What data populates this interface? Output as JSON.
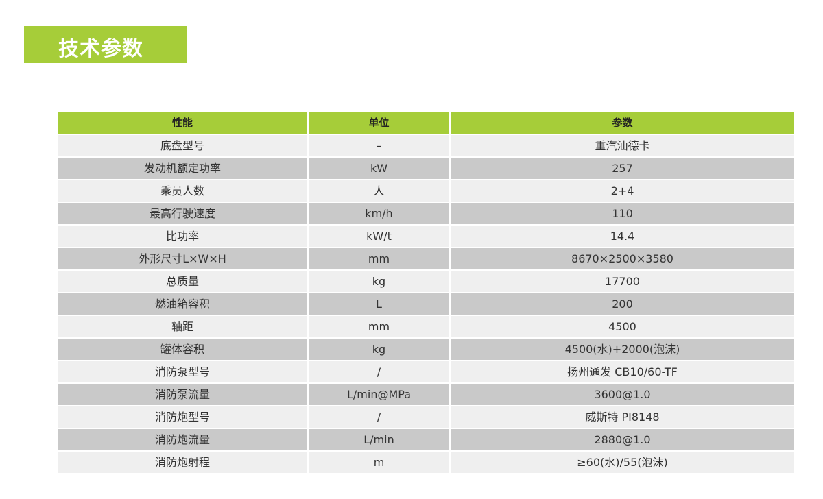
{
  "title": "技术参数",
  "colors": {
    "accent": "#a6cd39",
    "row_light": "#efefef",
    "row_dark": "#c9c9c9"
  },
  "table": {
    "headers": [
      "性能",
      "单位",
      "参数"
    ],
    "rows": [
      [
        "底盘型号",
        "–",
        "重汽汕德卡"
      ],
      [
        "发动机额定功率",
        "kW",
        "257"
      ],
      [
        "乘员人数",
        "人",
        "2+4"
      ],
      [
        "最高行驶速度",
        "km/h",
        "110"
      ],
      [
        "比功率",
        "kW/t",
        "14.4"
      ],
      [
        "外形尺寸L×W×H",
        "mm",
        "8670×2500×3580"
      ],
      [
        "总质量",
        "kg",
        "17700"
      ],
      [
        "燃油箱容积",
        "L",
        "200"
      ],
      [
        "轴距",
        "mm",
        "4500"
      ],
      [
        "罐体容积",
        "kg",
        "4500(水)+2000(泡沫)"
      ],
      [
        "消防泵型号",
        "/",
        "扬州通发 CB10/60-TF"
      ],
      [
        "消防泵流量",
        "L/min@MPa",
        "3600@1.0"
      ],
      [
        "消防炮型号",
        "/",
        "威斯特 PI8148"
      ],
      [
        "消防炮流量",
        "L/min",
        "2880@1.0"
      ],
      [
        "消防炮射程",
        "m",
        "≥60(水)/55(泡沫)"
      ]
    ]
  }
}
